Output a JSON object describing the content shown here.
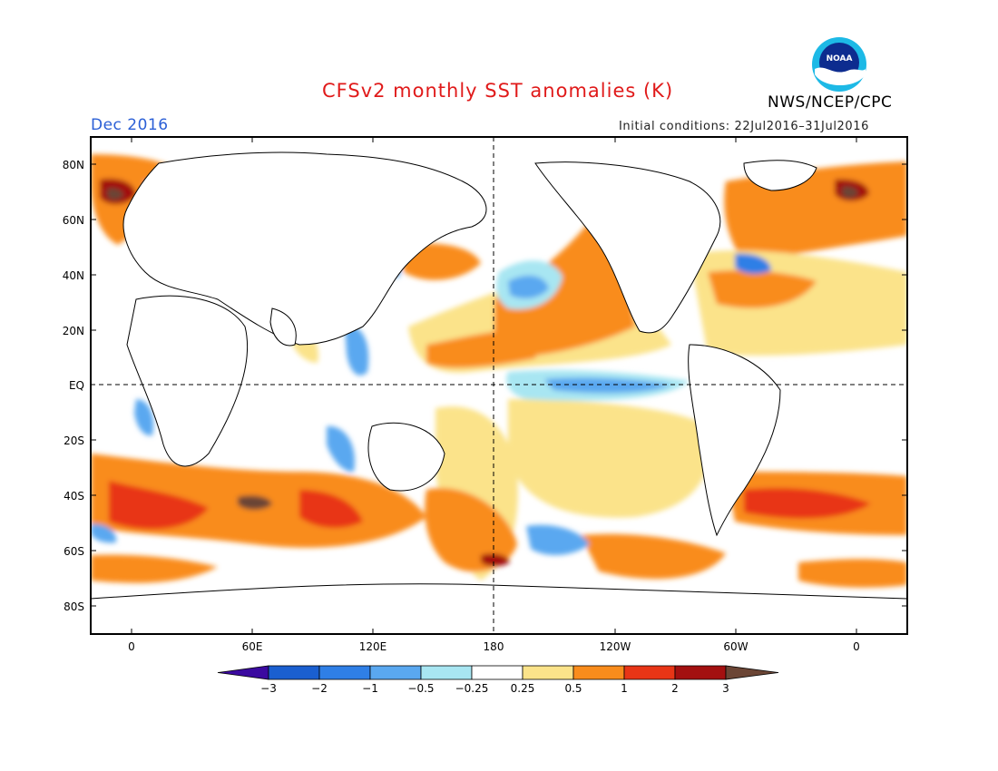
{
  "header": {
    "title": "CFSv2 monthly SST anomalies (K)",
    "agency": "NWS/NCEP/CPC",
    "month": "Dec 2016",
    "initial_conditions": "Initial conditions: 22Jul2016–31Jul2016",
    "logo_text": "NOAA"
  },
  "map": {
    "type": "global sea surface temperature anomaly map",
    "lat_ticks": [
      "80N",
      "60N",
      "40N",
      "20N",
      "EQ",
      "20S",
      "40S",
      "60S",
      "80S"
    ],
    "lon_ticks": [
      "0",
      "60E",
      "120E",
      "180",
      "120W",
      "60W",
      "0"
    ]
  },
  "colorbar": {
    "labels": [
      "−3",
      "−2",
      "−1",
      "−0.5",
      "−0.25",
      "0.25",
      "0.5",
      "1",
      "2",
      "3"
    ],
    "colors": [
      "#3b0aa0",
      "#1a5fd0",
      "#2f7fe6",
      "#5aa8f0",
      "#a8e6f2",
      "#ffffff",
      "#fbe38a",
      "#f98c1c",
      "#e83516",
      "#a31010",
      "#6b4535"
    ]
  }
}
